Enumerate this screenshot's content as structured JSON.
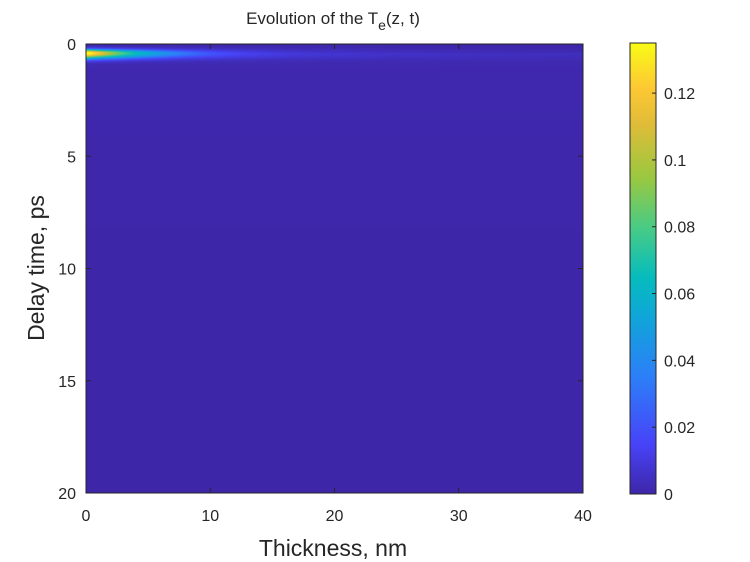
{
  "chart_data": {
    "type": "heatmap",
    "title": "Evolution of the T",
    "title_subscript": "e",
    "title_suffix": "(z, t)",
    "xlabel": "Thickness, nm",
    "ylabel": "Delay time, ps",
    "xlim": [
      0,
      40
    ],
    "ylim": [
      0,
      20
    ],
    "y_reversed": true,
    "xticks": [
      0,
      10,
      20,
      30,
      40
    ],
    "yticks": [
      0,
      5,
      10,
      15,
      20
    ],
    "colorbar": {
      "colormap": "parula",
      "range": [
        0,
        0.135
      ],
      "ticks": [
        0,
        0.02,
        0.04,
        0.06,
        0.08,
        0.1,
        0.12
      ],
      "tick_labels": [
        "0",
        "0.02",
        "0.04",
        "0.06",
        "0.08",
        "0.1",
        "0.12"
      ]
    },
    "hot_spot": {
      "peak_value": 0.135,
      "peak_delay_ps": 0.4,
      "peak_thickness_nm": 0.5,
      "spread_thickness_nm": 4,
      "spread_delay_ps": 0.1,
      "tail_extent_thickness_nm": 25,
      "tail_extent_delay_ps": 1.5
    }
  },
  "colors": {
    "axis": "#262626",
    "background": "#ffffff",
    "colormap_stops": [
      "#3e26a8",
      "#4743f8",
      "#2c7ff8",
      "#10a5d9",
      "#06bcbd",
      "#48cb86",
      "#99c840",
      "#e0bc38",
      "#fdc834",
      "#f9fb15"
    ]
  }
}
